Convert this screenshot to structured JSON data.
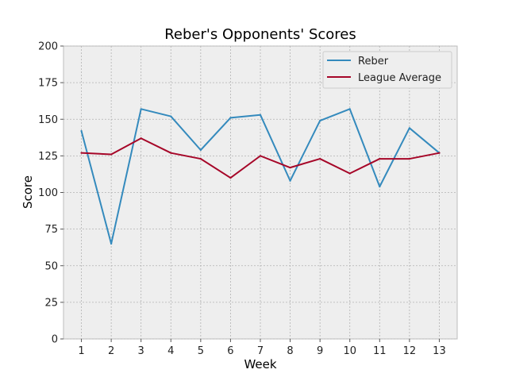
{
  "chart_data": {
    "type": "line",
    "title": "Reber's Opponents' Scores",
    "xlabel": "Week",
    "ylabel": "Score",
    "x": [
      1,
      2,
      3,
      4,
      5,
      6,
      7,
      8,
      9,
      10,
      11,
      12,
      13
    ],
    "xlim": [
      0.4,
      13.6
    ],
    "ylim": [
      0,
      200
    ],
    "yticks": [
      0,
      25,
      50,
      75,
      100,
      125,
      150,
      175,
      200
    ],
    "grid": true,
    "legend_position": "top-right",
    "series": [
      {
        "name": "Reber",
        "color": "#348ABD",
        "values": [
          142,
          65,
          157,
          152,
          129,
          151,
          153,
          108,
          149,
          157,
          104,
          144,
          127
        ]
      },
      {
        "name": "League Average",
        "color": "#A60628",
        "values": [
          127,
          126,
          137,
          127,
          123,
          110,
          125,
          117,
          123,
          113,
          123,
          123,
          127
        ]
      }
    ]
  }
}
